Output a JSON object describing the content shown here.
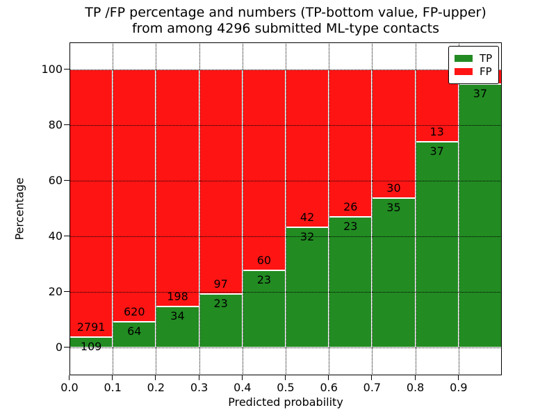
{
  "figure": {
    "title_line1": "TP /FP percentage and numbers (TP-bottom value, FP-upper)",
    "title_line2": "from among 4296 submitted ML-type contacts",
    "xlabel": "Predicted probability",
    "ylabel": "Percentage"
  },
  "legend": {
    "position": "upper right",
    "items": [
      {
        "label": "TP",
        "color": "#228b22"
      },
      {
        "label": "FP",
        "color": "#ff1414"
      }
    ]
  },
  "chart_data": {
    "type": "bar",
    "stacked": true,
    "title": "TP /FP percentage and numbers (TP-bottom value, FP-upper) from among 4296 submitted ML-type contacts",
    "xlabel": "Predicted probability",
    "ylabel": "Percentage",
    "xlim": [
      0.0,
      1.0
    ],
    "ylim": [
      -10,
      110
    ],
    "bar_width": 0.1,
    "grid": "dotted black, horizontal and vertical at ticks",
    "bar_edge_color": "#ffffff",
    "legend_position": "upper right",
    "total_contacts": 4296,
    "x_bins": [
      0.0,
      0.1,
      0.2,
      0.3,
      0.4,
      0.5,
      0.6,
      0.7,
      0.8,
      0.9
    ],
    "xticks": [
      0.0,
      0.1,
      0.2,
      0.3,
      0.4,
      0.5,
      0.6,
      0.7,
      0.8,
      0.9
    ],
    "xtick_labels": [
      "0.0",
      "0.1",
      "0.2",
      "0.3",
      "0.4",
      "0.5",
      "0.6",
      "0.7",
      "0.8",
      "0.9"
    ],
    "yticks": [
      0,
      20,
      40,
      60,
      80,
      100
    ],
    "ytick_labels": [
      "0",
      "20",
      "40",
      "60",
      "80",
      "100"
    ],
    "series": [
      {
        "name": "TP",
        "color": "#228b22",
        "values_pct": [
          3.76,
          9.36,
          14.66,
          19.17,
          27.71,
          43.24,
          46.94,
          53.85,
          74.0,
          94.87
        ],
        "count_labels": [
          "109",
          "64",
          "34",
          "23",
          "23",
          "32",
          "23",
          "35",
          "37",
          "37"
        ]
      },
      {
        "name": "FP",
        "color": "#ff1414",
        "values_pct": [
          96.24,
          90.64,
          85.34,
          80.83,
          72.29,
          56.76,
          53.06,
          46.15,
          26.0,
          5.13
        ],
        "count_labels": [
          "2791",
          "620",
          "198",
          "97",
          "60",
          "42",
          "26",
          "30",
          "13",
          null
        ]
      }
    ]
  }
}
